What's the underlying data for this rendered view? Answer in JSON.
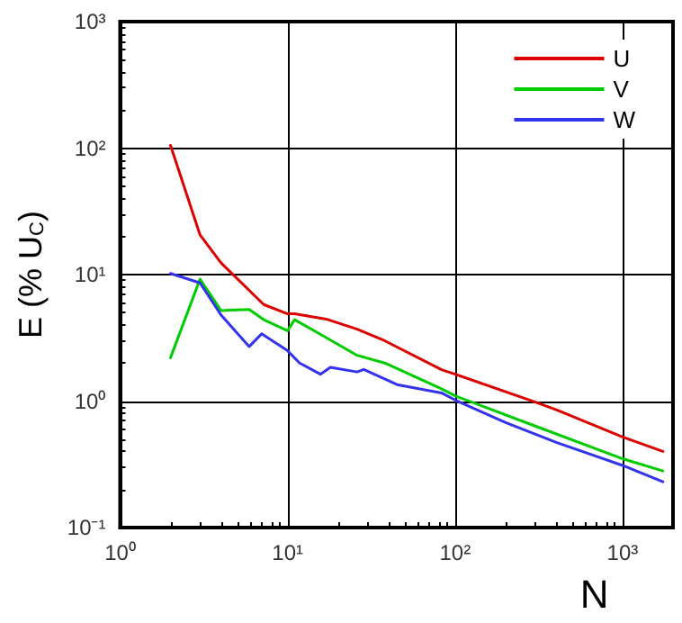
{
  "chart_data": {
    "type": "line",
    "xlabel": "N",
    "ylabel": "E (% U$_{C}$)",
    "log": "xy",
    "grid": true,
    "legend": "top right",
    "marker": "none",
    "line_style": "solid",
    "xlim": [
      1,
      2000
    ],
    "xticks": [
      {
        "value": 1,
        "label": "10⁰"
      },
      {
        "value": 10,
        "label": "10¹"
      },
      {
        "value": 100,
        "label": "10²"
      },
      {
        "value": 1000,
        "label": "10³"
      }
    ],
    "ylim": [
      0.1,
      1000
    ],
    "yticks": [
      {
        "value": 0.1,
        "label": "10⁻¹"
      },
      {
        "value": 1,
        "label": "10⁰"
      },
      {
        "value": 10,
        "label": "10¹"
      },
      {
        "value": 100,
        "label": "10²"
      },
      {
        "value": 1000,
        "label": "10³"
      }
    ],
    "series": [
      {
        "name": "U",
        "color": "#dd0000",
        "x": [
          2,
          3,
          4,
          7.2,
          10,
          11,
          17,
          26,
          38,
          83,
          100,
          296,
          405,
          1000,
          1740
        ],
        "values": [
          105,
          20.6,
          12.4,
          5.8,
          4.9,
          4.9,
          4.45,
          3.7,
          3.0,
          1.77,
          1.63,
          0.99,
          0.85,
          0.52,
          0.4
        ]
      },
      {
        "name": "V",
        "color": "#00cc00",
        "x": [
          2,
          3,
          4,
          5.9,
          7.2,
          10,
          11,
          14.7,
          26,
          38,
          83,
          100,
          296,
          1000,
          1740
        ],
        "values": [
          2.2,
          9.2,
          5.2,
          5.3,
          4.4,
          3.6,
          4.4,
          3.55,
          2.3,
          2.0,
          1.25,
          1.1,
          0.64,
          0.35,
          0.28
        ]
      },
      {
        "name": "W",
        "color": "#3333ee",
        "x": [
          2,
          3,
          4,
          5.9,
          7,
          10,
          11.8,
          15.7,
          18,
          26,
          28.5,
          45,
          83,
          100,
          199,
          405,
          1000,
          1740
        ],
        "values": [
          10.2,
          8.6,
          4.8,
          2.7,
          3.4,
          2.5,
          2.0,
          1.63,
          1.85,
          1.7,
          1.78,
          1.35,
          1.16,
          1.02,
          0.68,
          0.47,
          0.31,
          0.23
        ]
      }
    ]
  }
}
